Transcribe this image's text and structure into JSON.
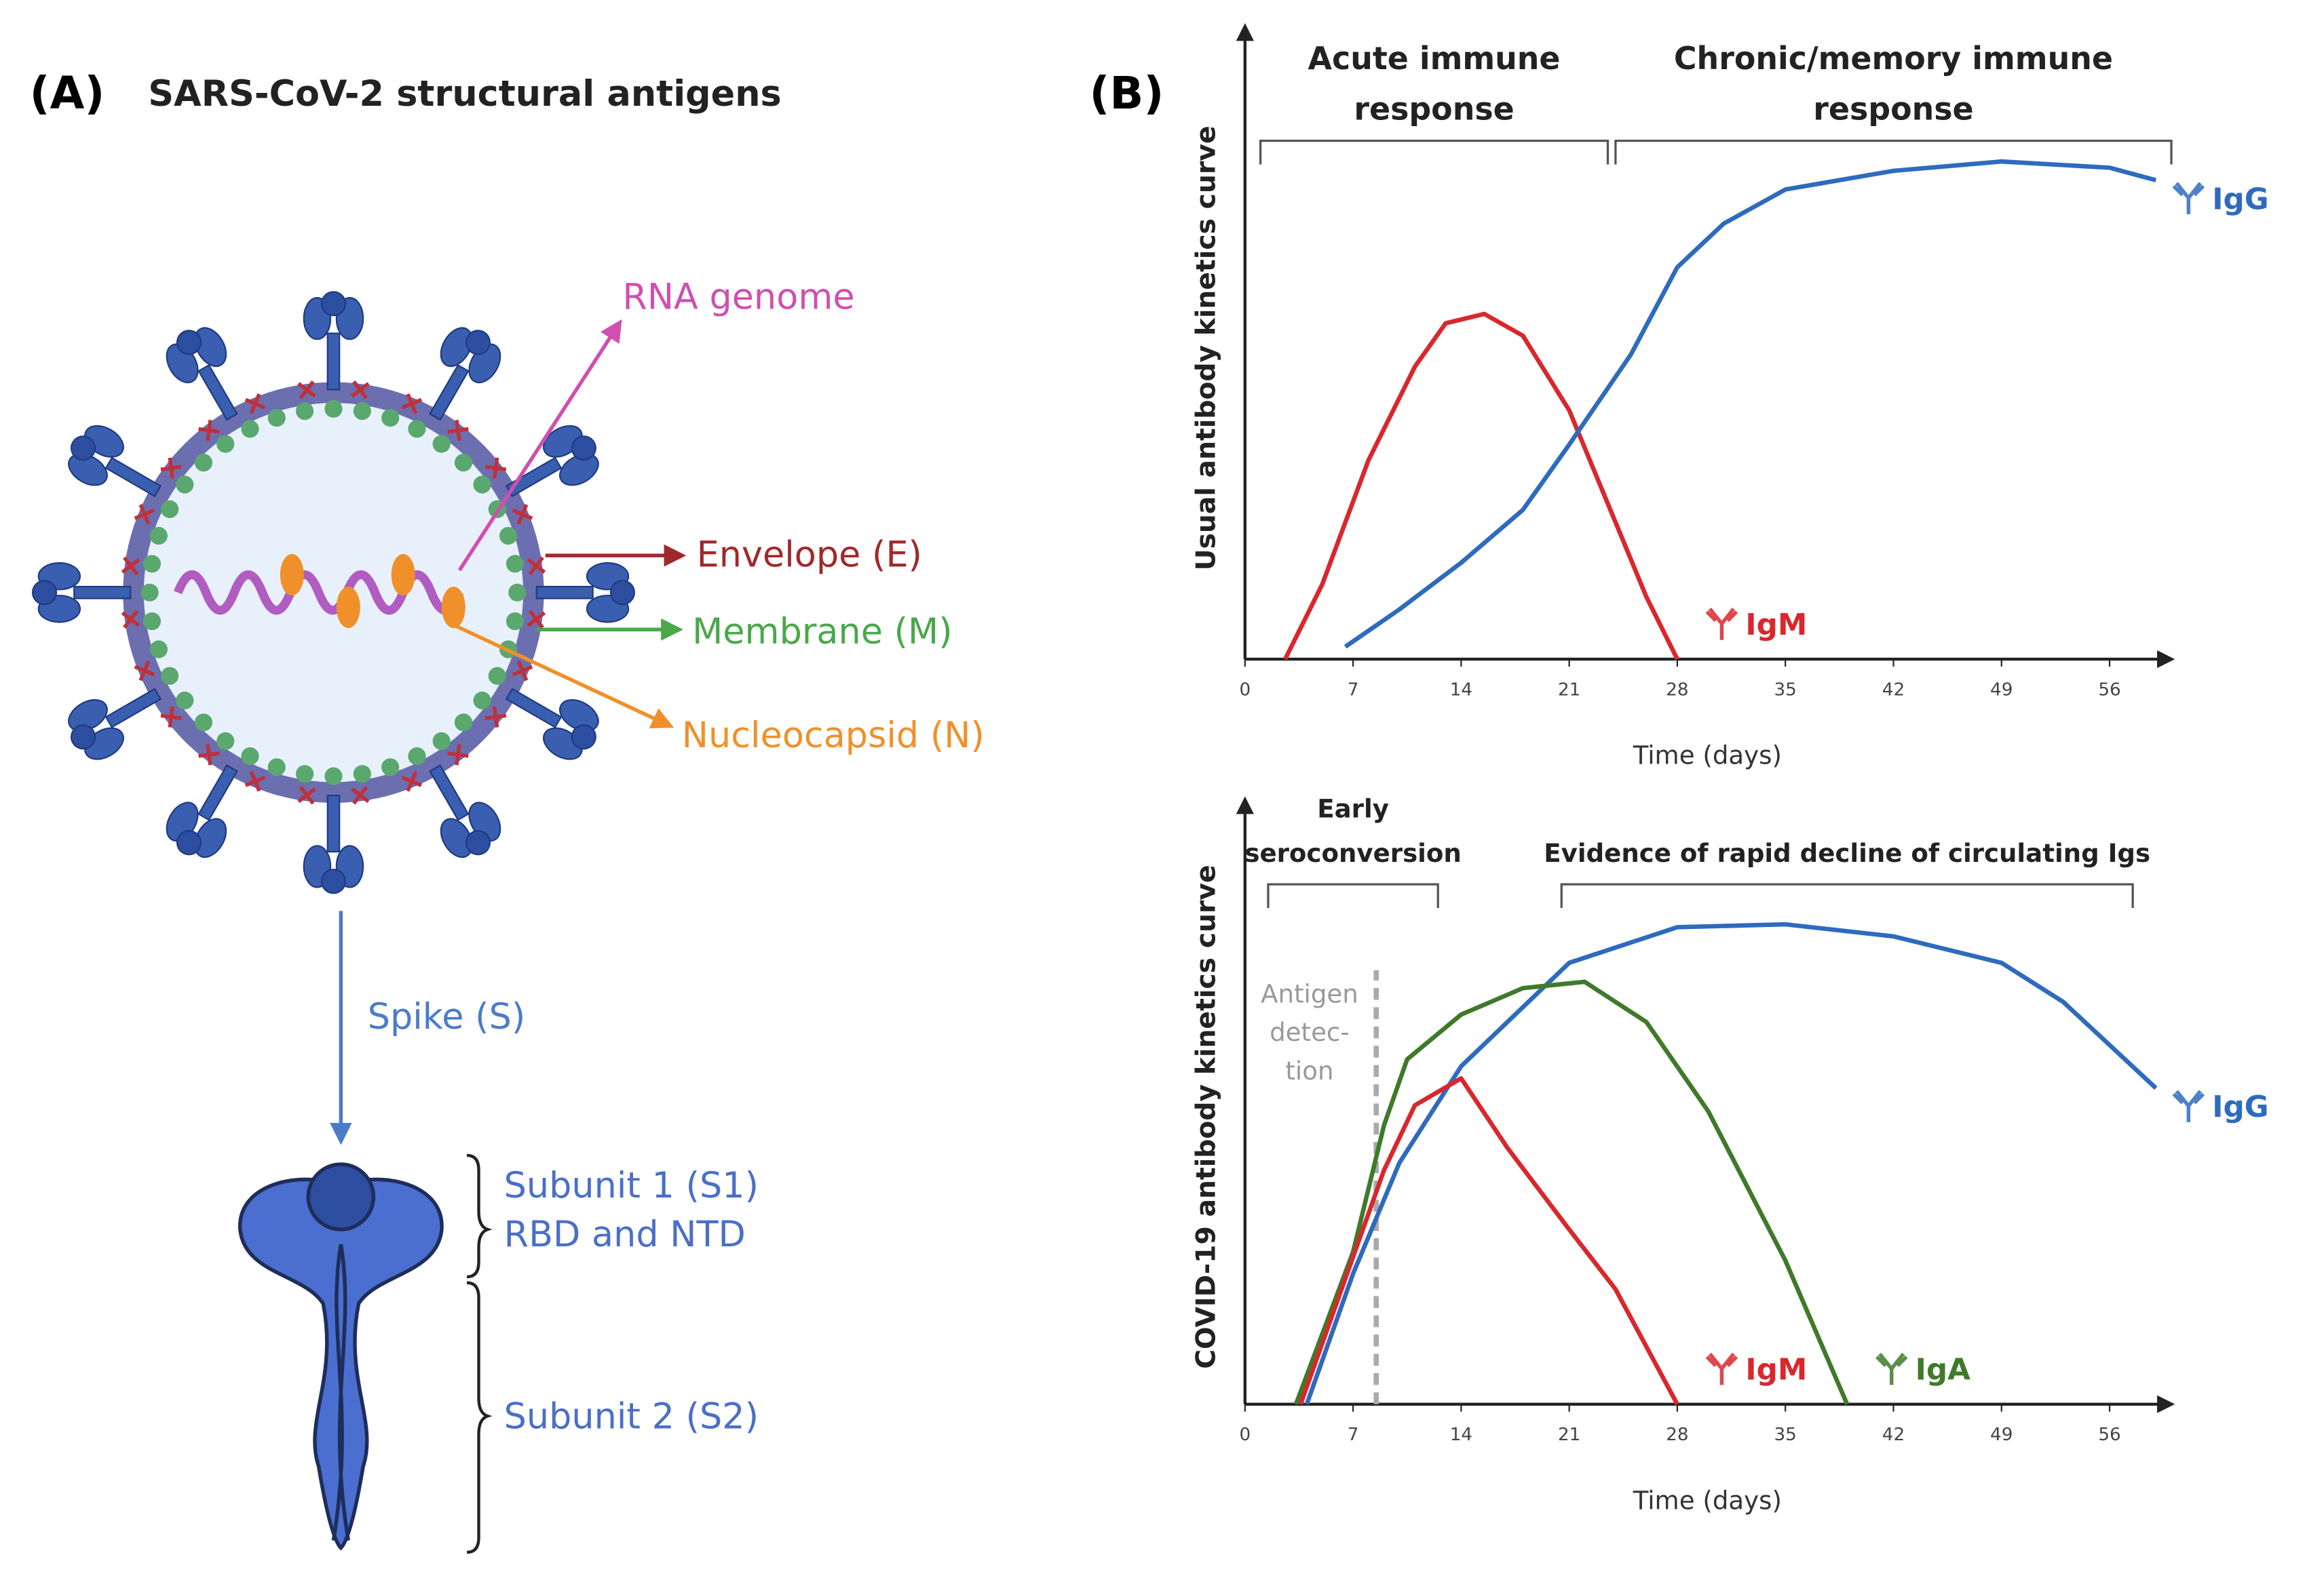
{
  "panel_a": {
    "label": "(A)",
    "title": "SARS-CoV-2 structural antigens",
    "labels": {
      "rna": "RNA genome",
      "envelope": "Envelope (E)",
      "membrane": "Membrane (M)",
      "nucleocapsid": "Nucleocapsid (N)",
      "spike": "Spike (S)",
      "subunit1": [
        "Subunit 1 (S1)",
        "RBD and NTD"
      ],
      "subunit2": "Subunit 2 (S2)"
    }
  },
  "panel_b": {
    "label": "(B)"
  },
  "chart_data": [
    {
      "type": "line",
      "ylabel": "Usual antibody kinetics curve",
      "xlabel": "Time (days)",
      "xlim": [
        0,
        60
      ],
      "ylim": [
        0,
        100
      ],
      "xticks": [
        0,
        7,
        14,
        21,
        28,
        35,
        42,
        49,
        56
      ],
      "annotations": [
        {
          "text": [
            "Acute immune",
            "response"
          ],
          "span": [
            1,
            23.5
          ]
        },
        {
          "text": [
            "Chronic/memory immune",
            "response"
          ],
          "span": [
            24,
            60
          ]
        }
      ],
      "series": [
        {
          "name": "IgM",
          "color": "#d9272e",
          "x": [
            2.6,
            5,
            8,
            11,
            13,
            15.5,
            18,
            21,
            24,
            26,
            28
          ],
          "values": [
            0,
            12,
            32,
            47,
            54,
            55.5,
            52,
            40,
            22,
            10,
            0
          ]
        },
        {
          "name": "IgG",
          "color": "#2e6bbf",
          "x": [
            6.5,
            10,
            14,
            18,
            21,
            25,
            28,
            31,
            35,
            42,
            49,
            56,
            59
          ],
          "values": [
            2,
            8,
            15.5,
            24,
            34.5,
            49,
            63,
            70,
            75.5,
            78.5,
            80,
            79,
            77
          ]
        }
      ]
    },
    {
      "type": "line",
      "ylabel": "COVID-19 antibody kinetics curve",
      "xlabel": "Time (days)",
      "xlim": [
        0,
        60
      ],
      "ylim": [
        0,
        100
      ],
      "xticks": [
        0,
        7,
        14,
        21,
        28,
        35,
        42,
        49,
        56
      ],
      "annotations": [
        {
          "text": [
            "Early",
            "seroconversion"
          ],
          "span": [
            1.5,
            12.5
          ]
        },
        {
          "text": [
            "Evidence of rapid decline of circulating Igs"
          ],
          "span": [
            20.5,
            57.5
          ]
        }
      ],
      "ref_line": {
        "x": 8.5,
        "label": [
          "Antigen",
          "detec-",
          "tion"
        ]
      },
      "series": [
        {
          "name": "IgG",
          "color": "#2e6bbf",
          "x": [
            4,
            7,
            10,
            14,
            21,
            28,
            35,
            42,
            49,
            53,
            59
          ],
          "values": [
            0,
            22.7,
            42,
            58.8,
            76.8,
            83,
            83.5,
            81.4,
            76.8,
            70,
            55
          ]
        },
        {
          "name": "IgA",
          "color": "#3f7a2a",
          "x": [
            3.3,
            7,
            9,
            10.5,
            14,
            18,
            22,
            26,
            30,
            35,
            39
          ],
          "values": [
            0,
            26.5,
            48.5,
            60,
            67.8,
            72.4,
            73.5,
            66.5,
            51,
            25,
            0
          ]
        },
        {
          "name": "IgM",
          "color": "#d9272e",
          "x": [
            3.6,
            9,
            11,
            14,
            17,
            21,
            24,
            28
          ],
          "values": [
            0,
            40.7,
            52,
            56.7,
            44.6,
            30.4,
            20,
            0
          ]
        }
      ]
    }
  ]
}
